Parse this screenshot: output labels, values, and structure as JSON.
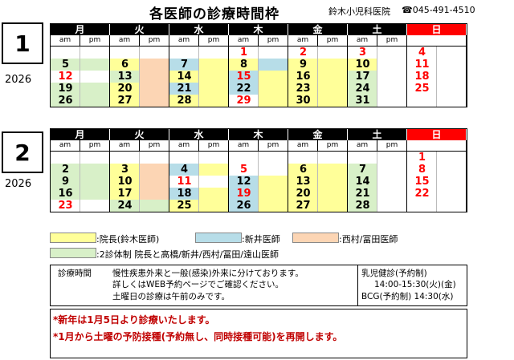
{
  "header": {
    "title": "各医師の診療時間枠",
    "clinic": "鈴木小児科医院",
    "phone": "☎045-491-4510"
  },
  "weekdays": [
    "月",
    "火",
    "水",
    "木",
    "金",
    "土",
    "日"
  ],
  "ampm": [
    "am",
    "pm"
  ],
  "months": [
    {
      "month": "1",
      "year": "2026",
      "weeks": [
        [
          null,
          null,
          null,
          {
            "d": "1",
            "red": true
          },
          {
            "d": "2",
            "red": true
          },
          {
            "d": "3",
            "red": true
          },
          {
            "d": "4",
            "red": true
          }
        ],
        [
          {
            "d": "5"
          },
          {
            "d": "6"
          },
          {
            "d": "7"
          },
          {
            "d": "8"
          },
          {
            "d": "9"
          },
          {
            "d": "10"
          },
          {
            "d": "11",
            "red": true
          }
        ],
        [
          {
            "d": "12",
            "red": true
          },
          {
            "d": "13"
          },
          {
            "d": "14"
          },
          {
            "d": "15",
            "red": true
          },
          {
            "d": "16"
          },
          {
            "d": "17"
          },
          {
            "d": "18",
            "red": true
          }
        ],
        [
          {
            "d": "19"
          },
          {
            "d": "20"
          },
          {
            "d": "21"
          },
          {
            "d": "22"
          },
          {
            "d": "23"
          },
          {
            "d": "24"
          },
          {
            "d": "25",
            "red": true
          }
        ],
        [
          {
            "d": "26"
          },
          {
            "d": "27"
          },
          {
            "d": "28"
          },
          {
            "d": "29",
            "red": true
          },
          {
            "d": "30"
          },
          {
            "d": "31"
          },
          null
        ]
      ]
    },
    {
      "month": "2",
      "year": "2026",
      "weeks": [
        [
          null,
          null,
          null,
          null,
          null,
          null,
          {
            "d": "1",
            "red": true
          }
        ],
        [
          {
            "d": "2"
          },
          {
            "d": "3"
          },
          {
            "d": "4"
          },
          {
            "d": "5",
            "red": true
          },
          {
            "d": "6"
          },
          {
            "d": "7"
          },
          {
            "d": "8",
            "red": true
          }
        ],
        [
          {
            "d": "9"
          },
          {
            "d": "10"
          },
          {
            "d": "11",
            "red": true
          },
          {
            "d": "12"
          },
          {
            "d": "13"
          },
          {
            "d": "14"
          },
          {
            "d": "15",
            "red": true
          }
        ],
        [
          {
            "d": "16"
          },
          {
            "d": "17"
          },
          {
            "d": "18"
          },
          {
            "d": "19",
            "red": true
          },
          {
            "d": "20"
          },
          {
            "d": "21"
          },
          {
            "d": "22",
            "red": true
          }
        ],
        [
          {
            "d": "23",
            "red": true
          },
          {
            "d": "24"
          },
          {
            "d": "25"
          },
          {
            "d": "26"
          },
          {
            "d": "27"
          },
          {
            "d": "28"
          },
          null
        ]
      ]
    }
  ],
  "legend": {
    "yellow": ":院長(鈴木医師)",
    "blue": ":新井医師",
    "orange": ":西村/冨田医師",
    "green": ":2診体制 院長と高橋/新井/西村/冨田/遠山医師"
  },
  "colors": {
    "yellow": "#ffff99",
    "blue": "#b7dde8",
    "orange": "#fcd5b4",
    "green": "#d8f0c8",
    "red": "#ff0000"
  },
  "info": {
    "label": "診療時間",
    "line1": "慢性疾患外来と一般(感染)外来に分けております。",
    "line2": "詳しくはWEB予約ページでご確認ください。",
    "line3": "土曜日の診療は午前のみです。",
    "checkup_title": "乳児健診(予約制)",
    "checkup_time": "14:00-15:30(火)(金)",
    "bcg": "BCG(予約制) 14:30(水)"
  },
  "notice": {
    "line1": "*新年は1月5日より診療いたします。",
    "line2": "*1月から土曜の予防接種(予約無し、同時接種可能)を再開します。"
  }
}
